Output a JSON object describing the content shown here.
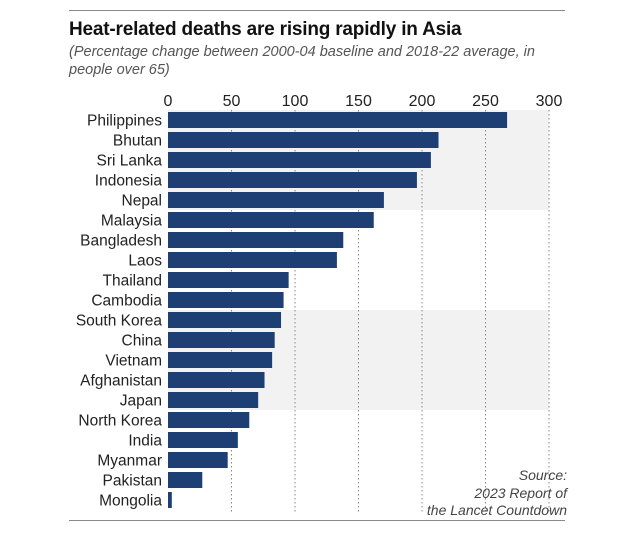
{
  "title": "Heat-related deaths are rising rapidly in Asia",
  "subtitle": "(Percentage change between 2000-04 baseline and 2018-22 average, in people over 65)",
  "source_lines": [
    "Source:",
    "2023 Report of",
    "the Lancet Countdown"
  ],
  "colors": {
    "bar": "#1e3f73",
    "band": "#f2f2f2",
    "grid": "#888888"
  },
  "chart_data": {
    "type": "bar",
    "orientation": "horizontal",
    "title": "Heat-related deaths are rising rapidly in Asia",
    "subtitle": "(Percentage change between 2000-04 baseline and 2018-22 average, in people over 65)",
    "categories": [
      "Philippines",
      "Bhutan",
      "Sri Lanka",
      "Indonesia",
      "Nepal",
      "Malaysia",
      "Bangladesh",
      "Laos",
      "Thailand",
      "Cambodia",
      "South Korea",
      "China",
      "Vietnam",
      "Afghanistan",
      "Japan",
      "North Korea",
      "India",
      "Myanmar",
      "Pakistan",
      "Mongolia"
    ],
    "values": [
      267,
      213,
      207,
      196,
      170,
      162,
      138,
      133,
      95,
      91,
      89,
      84,
      82,
      76,
      71,
      64,
      55,
      47,
      27,
      3
    ],
    "xlim": [
      0,
      300
    ],
    "xticks": [
      0,
      50,
      100,
      150,
      200,
      250,
      300
    ],
    "grid": true,
    "axis_position": "top",
    "shaded_bands": [
      [
        0,
        4
      ],
      [
        10,
        14
      ]
    ]
  }
}
